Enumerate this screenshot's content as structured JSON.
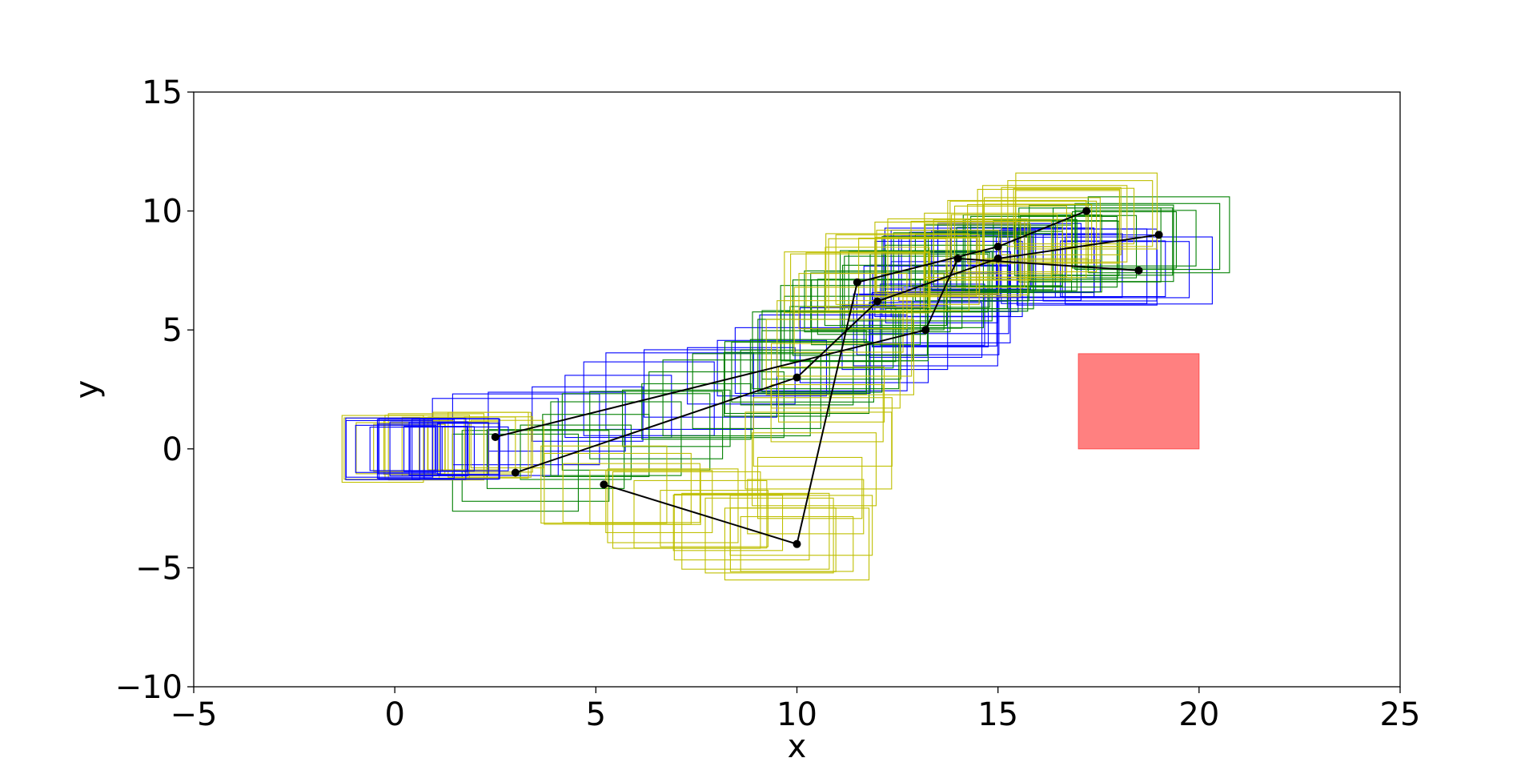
{
  "chart_data": {
    "type": "scatter",
    "xlabel": "x",
    "ylabel": "y",
    "xlim": [
      -5,
      25
    ],
    "ylim": [
      -10,
      15
    ],
    "xticks": [
      -5,
      0,
      5,
      10,
      15,
      20,
      25
    ],
    "yticks": [
      -10,
      -5,
      0,
      5,
      10,
      15
    ],
    "xtick_labels": [
      "−5",
      "0",
      "5",
      "10",
      "15",
      "20",
      "25"
    ],
    "ytick_labels": [
      "−10",
      "−5",
      "0",
      "5",
      "10",
      "15"
    ],
    "grid": false,
    "obstacle": {
      "x": [
        17,
        20
      ],
      "y": [
        0,
        4
      ],
      "color": "#ff8080"
    },
    "waypoints": [
      [
        2.5,
        0.5
      ],
      [
        13.2,
        5
      ],
      [
        14,
        8
      ],
      [
        18.5,
        7.5
      ],
      [
        3,
        -1
      ],
      [
        10,
        3
      ],
      [
        12,
        6.2
      ],
      [
        15,
        8
      ],
      [
        19,
        9
      ],
      [
        5.2,
        -1.5
      ],
      [
        10,
        -4
      ],
      [
        11.5,
        7
      ],
      [
        15,
        8.5
      ],
      [
        17.2,
        10
      ]
    ],
    "paths": [
      {
        "color": "#0000ff",
        "points": [
          [
            2.5,
            0.5
          ],
          [
            13.2,
            5
          ],
          [
            14,
            8
          ],
          [
            18.5,
            7.5
          ]
        ],
        "width": 3.4,
        "height": 3.0
      },
      {
        "color": "#008000",
        "points": [
          [
            3,
            -1
          ],
          [
            10,
            3
          ],
          [
            12,
            6.2
          ],
          [
            15,
            8
          ],
          [
            19,
            9
          ]
        ],
        "width": 3.4,
        "height": 3.0
      },
      {
        "color": "#bfbf00",
        "points": [
          [
            5.2,
            -1.5
          ],
          [
            10,
            -4
          ],
          [
            11.5,
            7
          ],
          [
            15,
            8.5
          ],
          [
            17.2,
            10
          ]
        ],
        "width": 3.4,
        "height": 3.0
      },
      {
        "color": "#bfbf00",
        "points": [
          [
            -0.3,
            0
          ],
          [
            2.8,
            0.2
          ]
        ],
        "width": 2.2,
        "height": 2.6
      },
      {
        "color": "#0000ff",
        "points": [
          [
            -0.3,
            0
          ],
          [
            2.0,
            0
          ]
        ],
        "width": 2.0,
        "height": 2.4
      }
    ]
  }
}
